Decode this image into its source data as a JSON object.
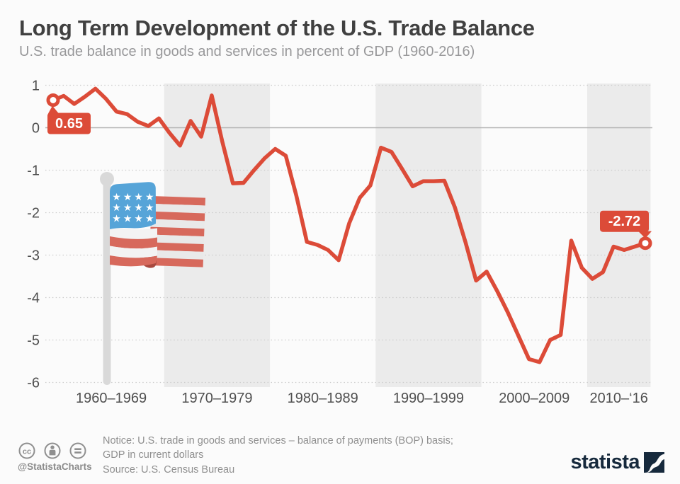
{
  "header": {
    "title": "Long Term Development of the U.S. Trade Balance",
    "subtitle": "U.S. trade balance in goods and services in percent of GDP (1960-2016)"
  },
  "chart_data": {
    "type": "line",
    "title": "Long Term Development of the U.S. Trade Balance",
    "subtitle": "U.S. trade balance in goods and services in percent of GDP (1960-2016)",
    "x": [
      1960,
      1961,
      1962,
      1963,
      1964,
      1965,
      1966,
      1967,
      1968,
      1969,
      1970,
      1971,
      1972,
      1973,
      1974,
      1975,
      1976,
      1977,
      1978,
      1979,
      1980,
      1981,
      1982,
      1983,
      1984,
      1985,
      1986,
      1987,
      1988,
      1989,
      1990,
      1991,
      1992,
      1993,
      1994,
      1995,
      1996,
      1997,
      1998,
      1999,
      2000,
      2001,
      2002,
      2003,
      2004,
      2005,
      2006,
      2007,
      2008,
      2009,
      2010,
      2011,
      2012,
      2013,
      2014,
      2015,
      2016
    ],
    "series": [
      {
        "name": "U.S. trade balance in goods and services in percent of GDP",
        "color": "#dc4b38",
        "values": [
          0.65,
          0.75,
          0.56,
          0.73,
          0.92,
          0.68,
          0.38,
          0.32,
          0.14,
          0.04,
          0.22,
          -0.12,
          -0.42,
          0.16,
          -0.21,
          0.76,
          -0.33,
          -1.31,
          -1.3,
          -1.0,
          -0.72,
          -0.5,
          -0.66,
          -1.6,
          -2.69,
          -2.76,
          -2.88,
          -3.12,
          -2.25,
          -1.65,
          -1.36,
          -0.47,
          -0.57,
          -0.97,
          -1.38,
          -1.26,
          -1.26,
          -1.25,
          -1.88,
          -2.7,
          -3.6,
          -3.39,
          -3.85,
          -4.35,
          -4.9,
          -5.45,
          -5.52,
          -5.0,
          -4.88,
          -2.66,
          -3.3,
          -3.56,
          -3.4,
          -2.8,
          -2.88,
          -2.8,
          -2.72
        ]
      }
    ],
    "ylim": [
      -6,
      1
    ],
    "yticks": [
      1,
      0,
      -1,
      -2,
      -3,
      -4,
      -5,
      -6
    ],
    "grid": "horizontal-dotted, solid zero line, alternating shaded decade bands",
    "legend": "none",
    "decade_bands": [
      {
        "label": "1960–1969",
        "from": 1960,
        "to": 1969,
        "shaded": false
      },
      {
        "label": "1970–1979",
        "from": 1970,
        "to": 1979,
        "shaded": true
      },
      {
        "label": "1980–1989",
        "from": 1980,
        "to": 1989,
        "shaded": false
      },
      {
        "label": "1990–1999",
        "from": 1990,
        "to": 1999,
        "shaded": true
      },
      {
        "label": "2000–2009",
        "from": 2000,
        "to": 2009,
        "shaded": false
      },
      {
        "label": "2010–‘16",
        "from": 2010,
        "to": 2016,
        "shaded": true
      }
    ],
    "annotations": [
      {
        "year": 1960,
        "value": 0.65,
        "label": "0.65",
        "placement": "below-point"
      },
      {
        "year": 2016,
        "value": -2.72,
        "label": "-2.72",
        "placement": "above-point"
      }
    ]
  },
  "footer": {
    "license_icons": [
      "cc-icon",
      "attribution-icon",
      "equal-icon"
    ],
    "handle": "@StatistaCharts",
    "notice_line1": "Notice: U.S. trade in goods and services – balance of payments (BOP) basis;",
    "notice_line2": "GDP in current dollars",
    "source": "Source: U.S. Census Bureau",
    "brand": "statista"
  },
  "colors": {
    "line": "#dc4b38",
    "badge": "#dc4b38",
    "band": "#ebebeb",
    "grid_dotted": "#cccccc",
    "zero_line": "#b3b3b3",
    "axis_text": "#4f4f4f",
    "brand_navy": "#16293c"
  }
}
